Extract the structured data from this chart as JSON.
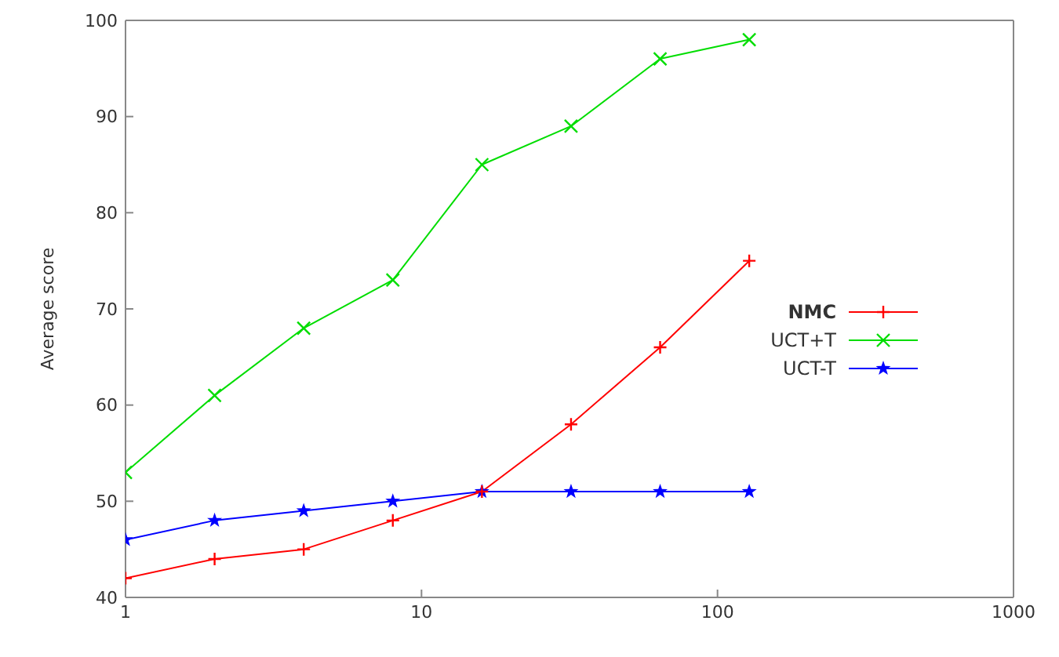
{
  "chart_data": {
    "type": "line",
    "ylabel": "Average score",
    "log": "x",
    "xlim": [
      1,
      1000
    ],
    "xticks": [
      1,
      10,
      100,
      1000
    ],
    "ylim": [
      40,
      100
    ],
    "yticks": [
      40,
      50,
      60,
      70,
      80,
      90,
      100
    ],
    "grid": false,
    "legend": "right",
    "line_style": "solid",
    "x": [
      1,
      2,
      4,
      8,
      16,
      32,
      64,
      128
    ],
    "series": [
      {
        "name": "NMC",
        "color": "#ff0000",
        "marker": "cross",
        "values": [
          42,
          44,
          45,
          48,
          51,
          58,
          66,
          75
        ]
      },
      {
        "name": "UCT+T",
        "color": "#00dd00",
        "marker": "cross",
        "values": [
          53,
          61,
          68,
          73,
          85,
          89,
          96,
          98
        ]
      },
      {
        "name": "UCT-T",
        "color": "#0000ff",
        "marker": "star",
        "values": [
          46,
          48,
          49,
          50,
          51,
          51,
          51,
          51
        ]
      }
    ]
  }
}
